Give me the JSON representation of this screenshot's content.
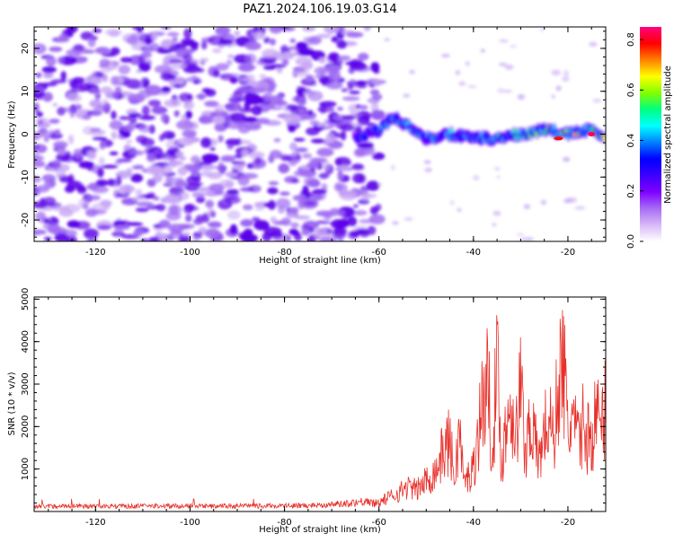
{
  "title": "PAZ1.2024.106.19.03.G14",
  "colors": {
    "snr_line": "#e8302a",
    "spectrum_core": "#5a00e8",
    "spectrum_light": "#c9a8f5"
  },
  "chart_data": [
    {
      "type": "heatmap",
      "xlabel": "Height of straight line (km)",
      "ylabel": "Frequency (Hz)",
      "xlim": [
        -133,
        -12
      ],
      "ylim": [
        -25,
        25
      ],
      "xticks": [
        -120,
        -100,
        -80,
        -60,
        -40,
        -20
      ],
      "yticks": [
        -20,
        -10,
        0,
        10,
        20
      ],
      "colorbar": {
        "label": "Normalized spectral amplitude",
        "range": [
          0.0,
          0.85
        ],
        "ticks": [
          0.0,
          0.2,
          0.4,
          0.6,
          0.8
        ],
        "colormap": [
          "#ffffff",
          "#d8b8f8",
          "#a66cf5",
          "#7f00ff",
          "#3d00ff",
          "#0000ff",
          "#0080ff",
          "#00ffff",
          "#00ff80",
          "#80ff00",
          "#ffff00",
          "#ff8000",
          "#ff0000",
          "#ff0080"
        ]
      },
      "ridge": {
        "x": [
          -65,
          -60,
          -57,
          -54,
          -50,
          -45,
          -40,
          -35,
          -30,
          -25,
          -20,
          -15,
          -12
        ],
        "y": [
          -1,
          1,
          4,
          2,
          -1,
          0,
          -1,
          -1,
          0,
          1,
          0,
          1,
          -1
        ],
        "amplitude": [
          0.3,
          0.35,
          0.45,
          0.4,
          0.38,
          0.42,
          0.4,
          0.45,
          0.48,
          0.5,
          0.55,
          0.6,
          0.55
        ],
        "peak": {
          "x": -15,
          "y": 0,
          "amplitude": 0.83
        }
      },
      "noise_extent_x": [
        -133,
        -60
      ]
    },
    {
      "type": "line",
      "xlabel": "Height of straight line (km)",
      "ylabel": "SNR (10 * v/v)",
      "xlim": [
        -133,
        -12
      ],
      "ylim": [
        0,
        5050
      ],
      "xticks": [
        -120,
        -100,
        -80,
        -60,
        -40,
        -20
      ],
      "yticks": [
        1000,
        2000,
        3000,
        4000,
        5000
      ],
      "series": [
        {
          "x": [
            -133,
            -125,
            -115,
            -105,
            -95,
            -85,
            -75,
            -68,
            -64,
            -62,
            -60,
            -58,
            -56,
            -54,
            -52,
            -50,
            -48,
            -46,
            -45,
            -44,
            -43,
            -42,
            -40,
            -38,
            -37,
            -36,
            -35,
            -34,
            -33,
            -32,
            -31,
            -30,
            -29,
            -28,
            -27,
            -26,
            -25,
            -24,
            -23,
            -22,
            -21,
            -20,
            -19,
            -18,
            -17,
            -16,
            -15,
            -14,
            -13,
            -12
          ],
          "y": [
            120,
            130,
            125,
            130,
            125,
            130,
            140,
            180,
            230,
            260,
            300,
            450,
            600,
            800,
            700,
            1000,
            1300,
            2100,
            2300,
            1000,
            2700,
            900,
            1400,
            3700,
            4200,
            2100,
            4700,
            1500,
            2900,
            3700,
            2400,
            4100,
            1800,
            3200,
            2200,
            1700,
            2600,
            3000,
            2300,
            4200,
            4900,
            2500,
            3100,
            2200,
            2800,
            2500,
            2300,
            3200,
            2600,
            3500
          ]
        }
      ]
    }
  ]
}
